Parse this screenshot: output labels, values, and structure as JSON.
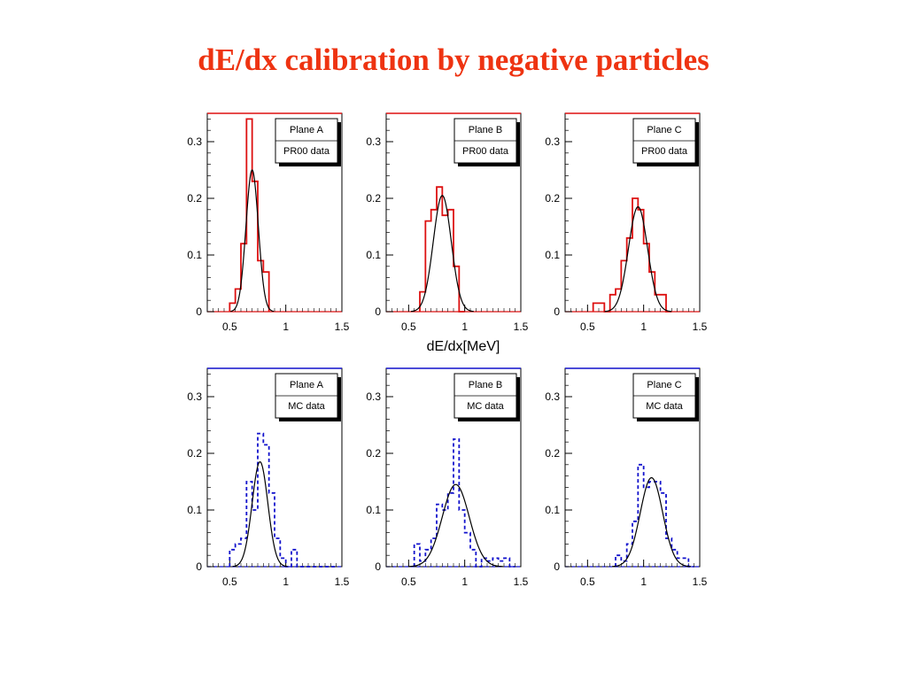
{
  "title": "dE/dx calibration by negative particles",
  "shared_xlabel": "dE/dx[MeV]",
  "colors": {
    "title": "#ee3311",
    "pr00": "#dd1111",
    "mc": "#1111cc",
    "fit": "#000000"
  },
  "chart_data": [
    {
      "type": "bar",
      "style": "step",
      "legend": [
        "Plane A",
        "PR00 data"
      ],
      "xlim": [
        0.3,
        1.5
      ],
      "ylim": [
        0,
        0.35
      ],
      "xticks": [
        "0.5",
        "1",
        "1.5"
      ],
      "yticks": [
        "0",
        "0.1",
        "0.2",
        "0.3"
      ],
      "bin_width": 0.05,
      "bin_starts": [
        0.5,
        0.55,
        0.6,
        0.65,
        0.7,
        0.75,
        0.8
      ],
      "values": [
        0.015,
        0.04,
        0.12,
        0.34,
        0.23,
        0.09,
        0.07
      ],
      "fit": {
        "amplitude": 0.25,
        "mean": 0.7,
        "sigma": 0.055
      }
    },
    {
      "type": "bar",
      "style": "step",
      "legend": [
        "Plane B",
        "PR00 data"
      ],
      "xlim": [
        0.3,
        1.5
      ],
      "ylim": [
        0,
        0.35
      ],
      "xticks": [
        "0.5",
        "1",
        "1.5"
      ],
      "yticks": [
        "0",
        "0.1",
        "0.2",
        "0.3"
      ],
      "bin_width": 0.05,
      "bin_starts": [
        0.6,
        0.65,
        0.7,
        0.75,
        0.8,
        0.85,
        0.9,
        0.95
      ],
      "values": [
        0.035,
        0.16,
        0.18,
        0.22,
        0.17,
        0.18,
        0.08,
        0.0
      ],
      "fit": {
        "amplitude": 0.205,
        "mean": 0.8,
        "sigma": 0.08
      }
    },
    {
      "type": "bar",
      "style": "step",
      "legend": [
        "Plane C",
        "PR00 data"
      ],
      "xlim": [
        0.3,
        1.5
      ],
      "ylim": [
        0,
        0.35
      ],
      "xticks": [
        "0.5",
        "1",
        "1.5"
      ],
      "yticks": [
        "0",
        "0.1",
        "0.2",
        "0.3"
      ],
      "bin_width": 0.05,
      "bin_starts": [
        0.55,
        0.6,
        0.65,
        0.7,
        0.75,
        0.8,
        0.85,
        0.9,
        0.95,
        1.0,
        1.05,
        1.1,
        1.15,
        1.2
      ],
      "values": [
        0.015,
        0.015,
        0.0,
        0.03,
        0.04,
        0.09,
        0.13,
        0.2,
        0.18,
        0.12,
        0.07,
        0.03,
        0.03,
        0.0
      ],
      "fit": {
        "amplitude": 0.185,
        "mean": 0.95,
        "sigma": 0.085
      }
    },
    {
      "type": "bar",
      "style": "step-dashed",
      "legend": [
        "Plane A",
        "MC data"
      ],
      "xlim": [
        0.3,
        1.5
      ],
      "ylim": [
        0,
        0.35
      ],
      "xticks": [
        "0.5",
        "1",
        "1.5"
      ],
      "yticks": [
        "0",
        "0.1",
        "0.2",
        "0.3"
      ],
      "bin_width": 0.05,
      "bin_starts": [
        0.5,
        0.55,
        0.6,
        0.65,
        0.7,
        0.75,
        0.8,
        0.85,
        0.9,
        0.95,
        1.0,
        1.05,
        1.1,
        1.15,
        1.2,
        1.25,
        1.3,
        1.35,
        1.4
      ],
      "values": [
        0.03,
        0.04,
        0.05,
        0.15,
        0.1,
        0.235,
        0.215,
        0.13,
        0.05,
        0.015,
        0.0,
        0.03,
        0.0,
        0.0,
        0.0,
        0.0,
        0.0,
        0.0,
        0.0
      ],
      "fit": {
        "amplitude": 0.185,
        "mean": 0.77,
        "sigma": 0.07
      }
    },
    {
      "type": "bar",
      "style": "step-dashed",
      "legend": [
        "Plane B",
        "MC data"
      ],
      "xlim": [
        0.3,
        1.5
      ],
      "ylim": [
        0,
        0.35
      ],
      "xticks": [
        "0.5",
        "1",
        "1.5"
      ],
      "yticks": [
        "0",
        "0.1",
        "0.2",
        "0.3"
      ],
      "bin_width": 0.05,
      "bin_starts": [
        0.55,
        0.6,
        0.65,
        0.7,
        0.75,
        0.8,
        0.85,
        0.9,
        0.95,
        1.0,
        1.05,
        1.1,
        1.15,
        1.2,
        1.25,
        1.3,
        1.35,
        1.4
      ],
      "values": [
        0.04,
        0.01,
        0.03,
        0.05,
        0.11,
        0.1,
        0.13,
        0.225,
        0.1,
        0.06,
        0.03,
        0.0,
        0.015,
        0.01,
        0.015,
        0.01,
        0.015,
        0.0
      ],
      "fit": {
        "amplitude": 0.145,
        "mean": 0.92,
        "sigma": 0.12
      }
    },
    {
      "type": "bar",
      "style": "step-dashed",
      "legend": [
        "Plane C",
        "MC data"
      ],
      "xlim": [
        0.3,
        1.5
      ],
      "ylim": [
        0,
        0.35
      ],
      "xticks": [
        "0.5",
        "1",
        "1.5"
      ],
      "yticks": [
        "0",
        "0.1",
        "0.2",
        "0.3"
      ],
      "bin_width": 0.05,
      "bin_starts": [
        0.75,
        0.8,
        0.85,
        0.9,
        0.95,
        1.0,
        1.05,
        1.1,
        1.15,
        1.2,
        1.25,
        1.3,
        1.35,
        1.4
      ],
      "values": [
        0.02,
        0.01,
        0.04,
        0.08,
        0.18,
        0.14,
        0.15,
        0.15,
        0.13,
        0.05,
        0.03,
        0.015,
        0.015,
        0.0
      ],
      "fit": {
        "amplitude": 0.157,
        "mean": 1.07,
        "sigma": 0.1
      }
    }
  ]
}
